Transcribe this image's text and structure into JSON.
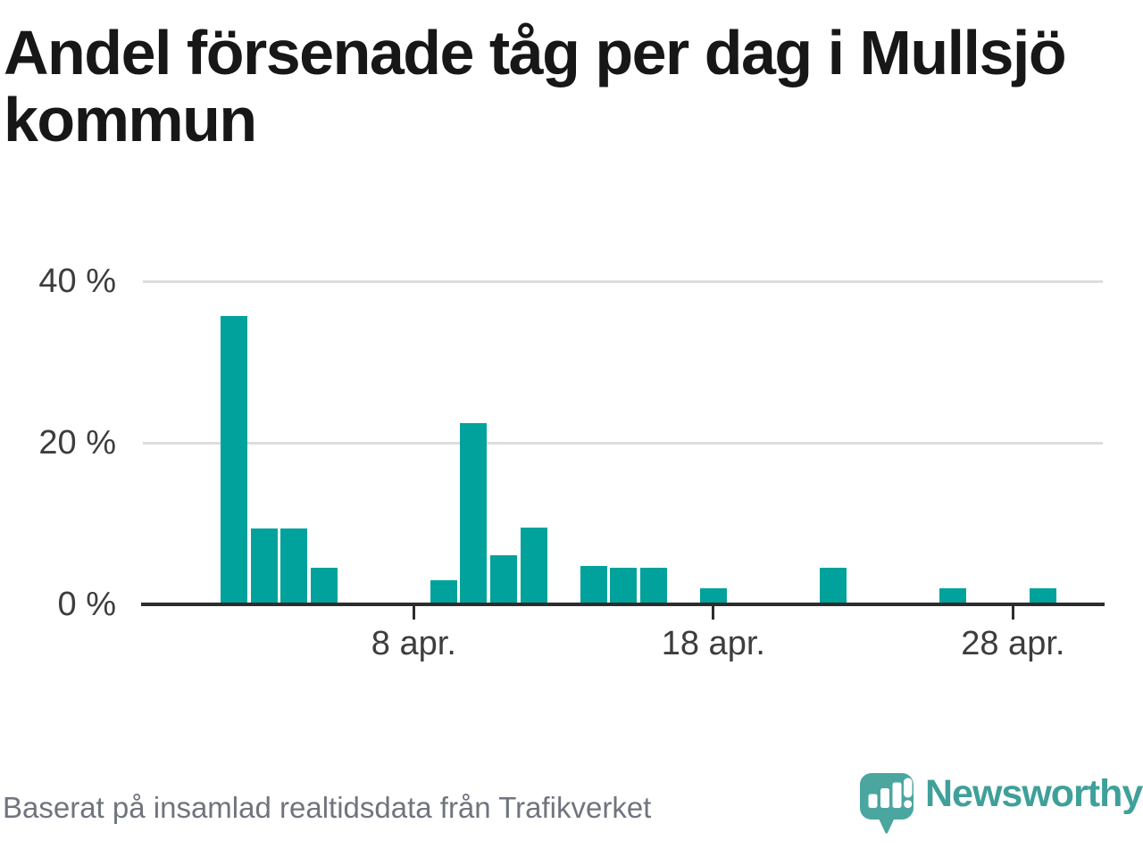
{
  "header": {
    "title": "Andel försenade tåg per dag i Mullsjö\nkommun"
  },
  "footer": {
    "source_text": "Baserat på insamlad realtidsdata från Trafikverket",
    "logo_text": "Newsworthy"
  },
  "colors": {
    "bar": "#00a29b",
    "axis": "#2d2d2d",
    "grid": "#dddddd",
    "title": "#171717",
    "tick_label": "#3d3d3d",
    "footer_text": "#70747e",
    "logo_bubble": "#4ba69f",
    "logo_text": "#3fa09a",
    "logo_glyph": "#ffffff"
  },
  "chart_data": {
    "type": "bar",
    "title": "Andel försenade tåg per dag i Mullsjö kommun",
    "xlabel": "",
    "ylabel": "",
    "x_unit": "day of April",
    "x": [
      1,
      2,
      3,
      4,
      5,
      6,
      7,
      8,
      9,
      10,
      11,
      12,
      13,
      14,
      15,
      16,
      17,
      18,
      19,
      20,
      21,
      22,
      23,
      24,
      25,
      26,
      27,
      28,
      29,
      30
    ],
    "values": [
      0,
      35.7,
      9.4,
      9.4,
      4.5,
      0,
      0,
      0,
      3.0,
      22.4,
      6.1,
      9.5,
      0,
      4.8,
      4.5,
      4.5,
      0,
      2.0,
      0,
      0,
      0,
      4.5,
      0,
      0,
      0,
      2.0,
      0,
      0,
      2.0,
      0
    ],
    "series_name": "Andel försenade tåg (%)",
    "ylim": [
      0,
      42
    ],
    "grid": "horizontal",
    "legend": "none",
    "y_ticks": [
      {
        "value": 0,
        "label": "0 %"
      },
      {
        "value": 20,
        "label": "20 %"
      },
      {
        "value": 40,
        "label": "40 %"
      }
    ],
    "x_ticks": [
      {
        "day": 8,
        "label": "8 apr."
      },
      {
        "day": 18,
        "label": "18 apr."
      },
      {
        "day": 28,
        "label": "28 apr."
      }
    ]
  }
}
